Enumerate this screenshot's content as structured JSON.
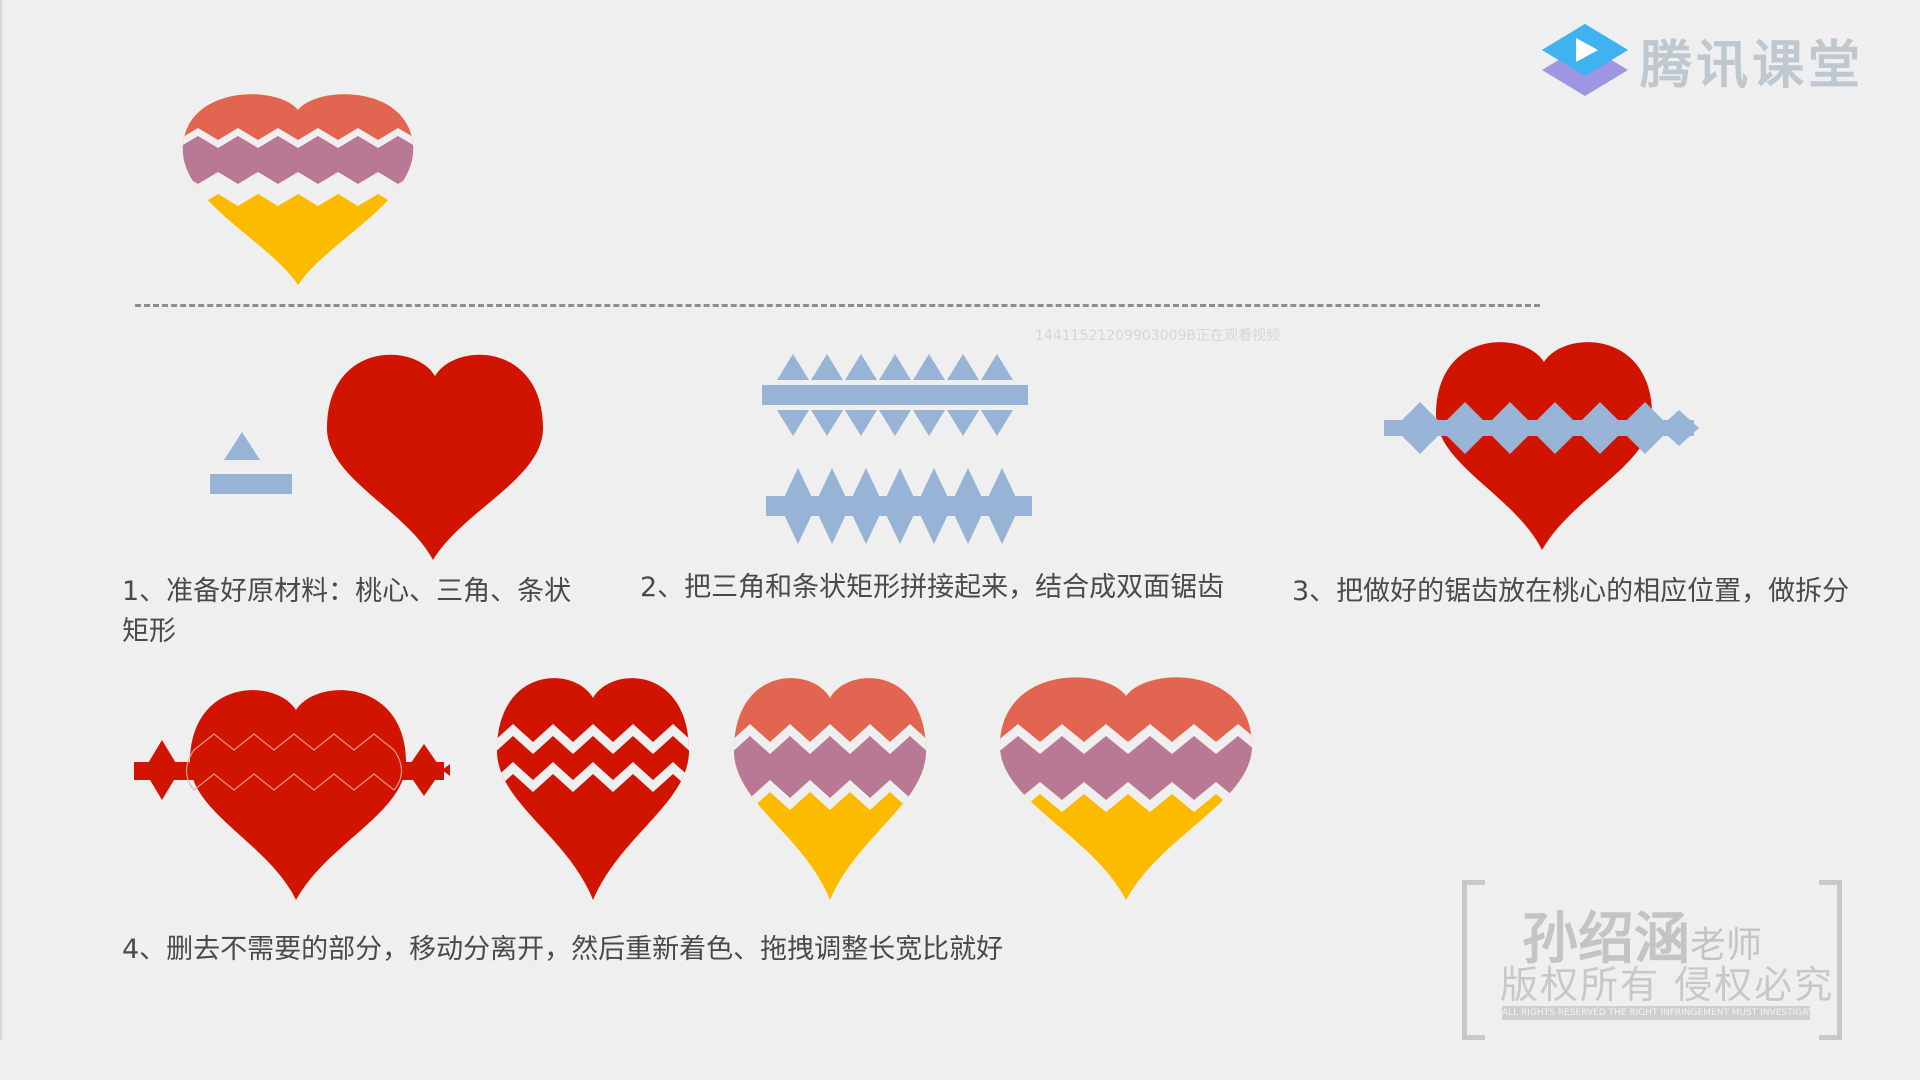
{
  "logo": {
    "text": "腾讯课堂",
    "icon": "play-icon"
  },
  "viewer_id": "14411521209903009B正在观看视频",
  "captions": {
    "step1": "1、准备好原材料：桃心、三角、条状矩形",
    "step2": "2、把三角和条状矩形拼接起来，结合成双面锯齿",
    "step3": "3、把做好的锯齿放在桃心的相应位置，做拆分",
    "step4": "4、删去不需要的部分，移动分离开，然后重新着色、拖拽调整长宽比就好"
  },
  "stamp": {
    "name": "孙绍涵",
    "role": "老师",
    "rights": "版权所有 侵权必究",
    "small": "ALL RIGHTS RESERVED THE RIGHT INFRINGEMENT MUST INVESTIGATE"
  },
  "colors": {
    "red": "#d11400",
    "coral": "#e26552",
    "purple": "#b97894",
    "yellow": "#fdbb00",
    "blue": "#97b3d6",
    "background": "#efefef"
  }
}
